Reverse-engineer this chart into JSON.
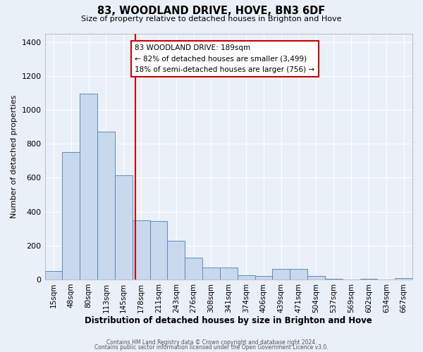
{
  "title": "83, WOODLAND DRIVE, HOVE, BN3 6DF",
  "subtitle": "Size of property relative to detached houses in Brighton and Hove",
  "xlabel": "Distribution of detached houses by size in Brighton and Hove",
  "ylabel": "Number of detached properties",
  "bar_color": "#c8d8ed",
  "bar_edge_color": "#5b8db8",
  "background_color": "#eaf0f8",
  "grid_color": "#ffffff",
  "categories": [
    "15sqm",
    "48sqm",
    "80sqm",
    "113sqm",
    "145sqm",
    "178sqm",
    "211sqm",
    "243sqm",
    "276sqm",
    "308sqm",
    "341sqm",
    "374sqm",
    "406sqm",
    "439sqm",
    "471sqm",
    "504sqm",
    "537sqm",
    "569sqm",
    "602sqm",
    "634sqm",
    "667sqm"
  ],
  "values": [
    50,
    750,
    1095,
    870,
    615,
    350,
    345,
    230,
    130,
    70,
    70,
    25,
    20,
    60,
    60,
    20,
    5,
    0,
    5,
    0,
    10
  ],
  "ylim": [
    0,
    1450
  ],
  "yticks": [
    0,
    200,
    400,
    600,
    800,
    1000,
    1200,
    1400
  ],
  "property_line_x": 5,
  "property_label": "83 WOODLAND DRIVE: 189sqm",
  "annotation_line1": "← 82% of detached houses are smaller (3,499)",
  "annotation_line2": "18% of semi-detached houses are larger (756) →",
  "annotation_box_color": "#ffffff",
  "annotation_border_color": "#cc0000",
  "vline_color": "#cc0000",
  "footer1": "Contains HM Land Registry data © Crown copyright and database right 2024.",
  "footer2": "Contains public sector information licensed under the Open Government Licence v3.0.",
  "bin_edges": [
    0,
    1,
    2,
    3,
    4,
    5,
    6,
    7,
    8,
    9,
    10,
    11,
    12,
    13,
    14,
    15,
    16,
    17,
    18,
    19,
    20,
    21
  ],
  "n_bins": 21,
  "vline_bin": 5.18
}
